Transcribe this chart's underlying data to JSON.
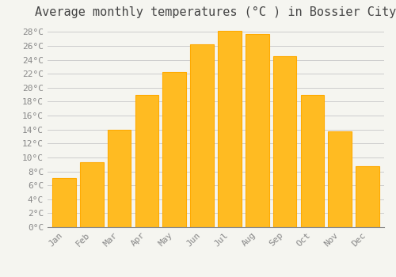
{
  "title": "Average monthly temperatures (°C ) in Bossier City",
  "months": [
    "Jan",
    "Feb",
    "Mar",
    "Apr",
    "May",
    "Jun",
    "Jul",
    "Aug",
    "Sep",
    "Oct",
    "Nov",
    "Dec"
  ],
  "values": [
    7,
    9.3,
    14,
    19,
    22.2,
    26.2,
    28.2,
    27.7,
    24.5,
    19,
    13.7,
    8.7
  ],
  "bar_color": "#FFBB22",
  "bar_edge_color": "#FFAA00",
  "ylim": [
    0,
    29
  ],
  "ytick_step": 2,
  "background_color": "#F5F5F0",
  "grid_color": "#CCCCCC",
  "title_fontsize": 11,
  "tick_fontsize": 8,
  "tick_color": "#888888",
  "font_family": "monospace",
  "title_color": "#444444"
}
